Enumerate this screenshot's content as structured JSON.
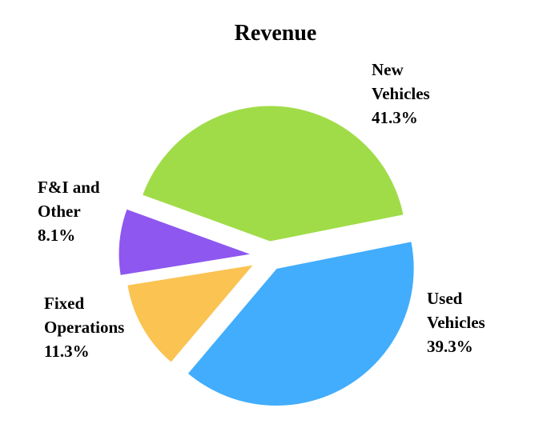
{
  "chart_data": {
    "type": "pie",
    "title": "Revenue",
    "exploded": true,
    "slices": [
      {
        "label_lines": [
          "New",
          "Vehicles"
        ],
        "pct_label": "41.3%",
        "value": 41.3,
        "color": "#a0dc48"
      },
      {
        "label_lines": [
          "Used",
          "Vehicles"
        ],
        "pct_label": "39.3%",
        "value": 39.3,
        "color": "#42adfc"
      },
      {
        "label_lines": [
          "Fixed",
          "Operations"
        ],
        "pct_label": "11.3%",
        "value": 11.3,
        "color": "#fac352"
      },
      {
        "label_lines": [
          "F&I and",
          "Other"
        ],
        "pct_label": "8.1%",
        "value": 8.1,
        "color": "#8d57f0"
      }
    ]
  }
}
